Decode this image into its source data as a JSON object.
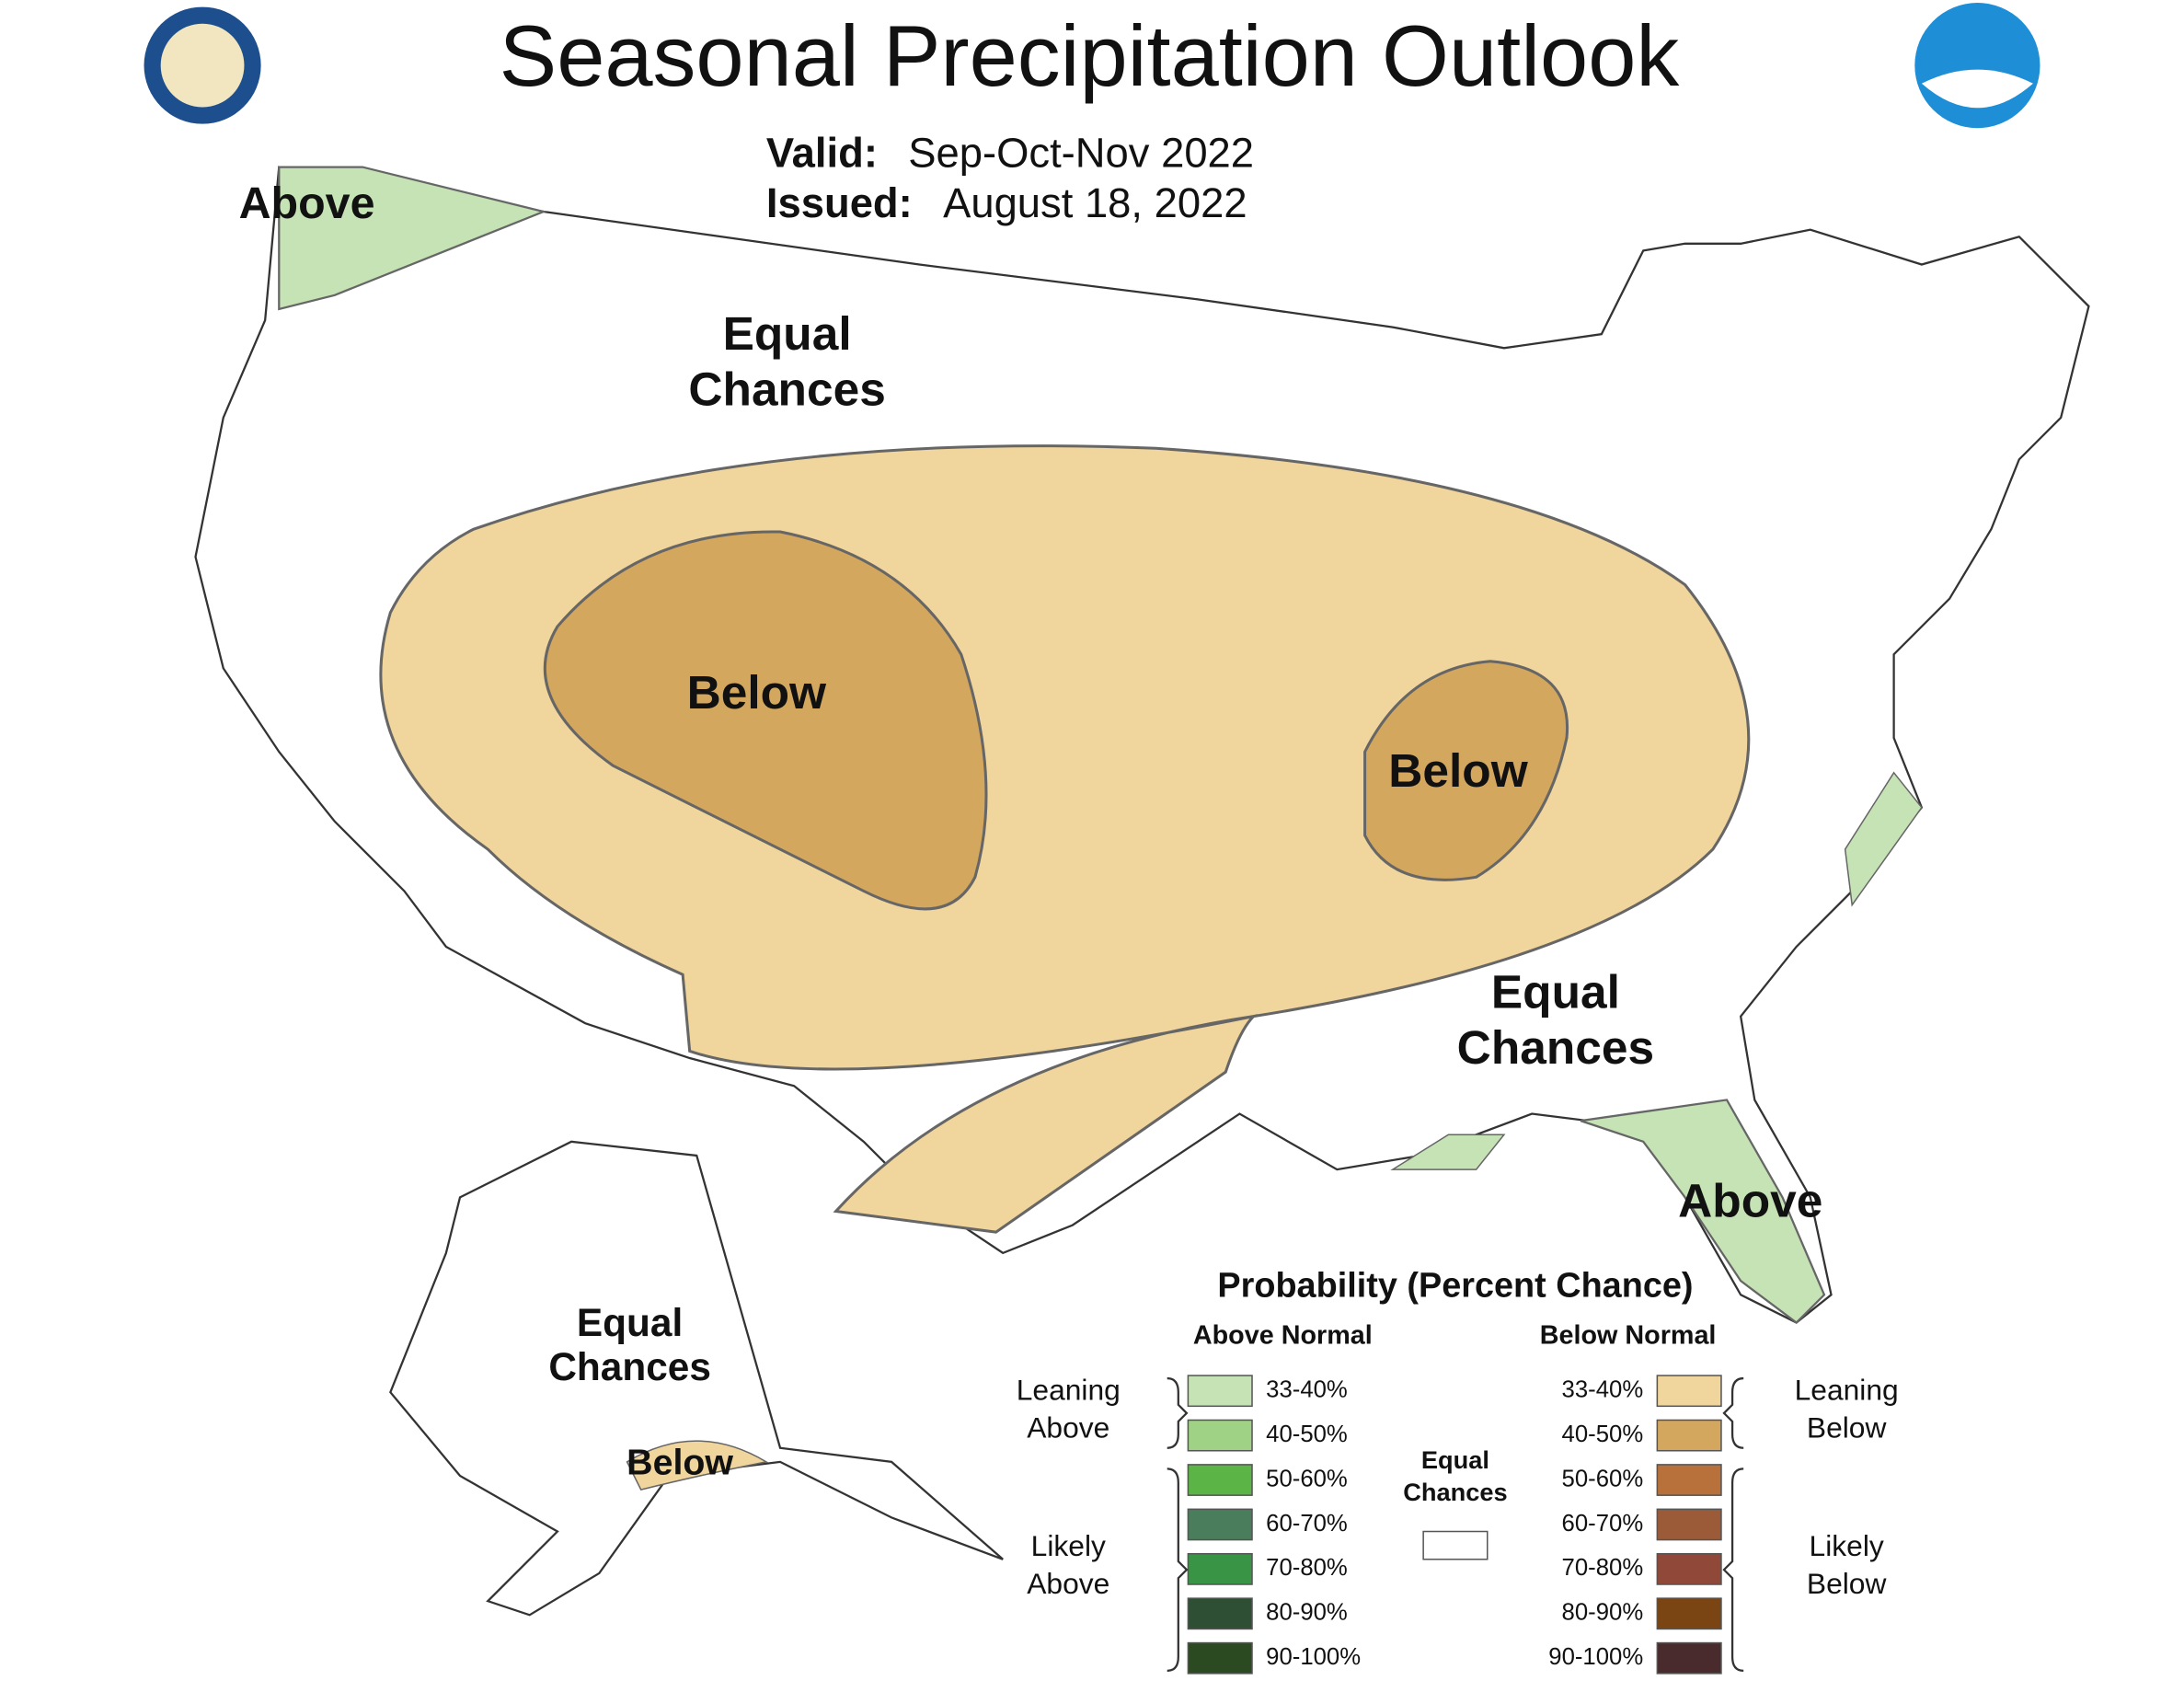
{
  "header": {
    "title": "Seasonal Precipitation Outlook",
    "valid_label": "Valid:",
    "valid": "Sep-Oct-Nov 2022",
    "issued_label": "Issued:",
    "issued": "August 18, 2022"
  },
  "map_labels": [
    {
      "lines": [
        "Above"
      ]
    },
    {
      "lines": [
        "Equal",
        "Chances"
      ]
    },
    {
      "lines": [
        "Below"
      ]
    },
    {
      "lines": [
        "Below"
      ]
    },
    {
      "lines": [
        "Equal",
        "Chances"
      ]
    },
    {
      "lines": [
        "Above"
      ]
    },
    {
      "lines": [
        "Equal",
        "Chances"
      ]
    },
    {
      "lines": [
        "Below"
      ]
    }
  ],
  "legend": {
    "title": "Probability (Percent Chance)",
    "above_title": "Above Normal",
    "below_title": "Below Normal",
    "leaning_above": [
      "Leaning",
      "Above"
    ],
    "likely_above": [
      "Likely",
      "Above"
    ],
    "leaning_below": [
      "Leaning",
      "Below"
    ],
    "likely_below": [
      "Likely",
      "Below"
    ],
    "equal_chances": [
      "Equal",
      "Chances"
    ],
    "above_items": [
      {
        "label": "33-40%",
        "color": "#c6e3b5"
      },
      {
        "label": "40-50%",
        "color": "#a0d285"
      },
      {
        "label": "50-60%",
        "color": "#5bb446"
      },
      {
        "label": "60-70%",
        "color": "#4a7d5c"
      },
      {
        "label": "70-80%",
        "color": "#3a9446"
      },
      {
        "label": "80-90%",
        "color": "#2f4f35"
      },
      {
        "label": "90-100%",
        "color": "#2b4a22"
      }
    ],
    "below_items": [
      {
        "label": "33-40%",
        "color": "#f0d59d"
      },
      {
        "label": "40-50%",
        "color": "#d4a75e"
      },
      {
        "label": "50-60%",
        "color": "#b8713a"
      },
      {
        "label": "60-70%",
        "color": "#9b5a38"
      },
      {
        "label": "70-80%",
        "color": "#904838"
      },
      {
        "label": "80-90%",
        "color": "#7a4512"
      },
      {
        "label": "90-100%",
        "color": "#4a2b2d"
      }
    ]
  }
}
